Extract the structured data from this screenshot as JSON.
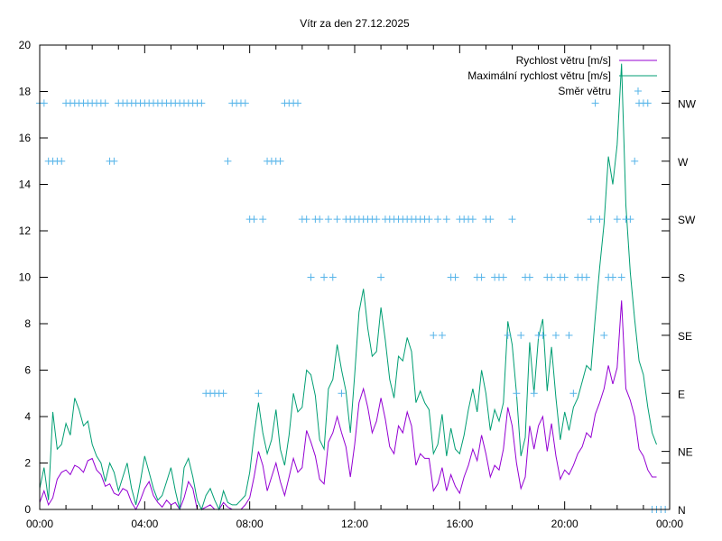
{
  "chart_data": {
    "type": "line",
    "title": "Vítr za den 27.12.2025",
    "xlabel": "",
    "ylabel": "",
    "xlim": [
      0,
      24
    ],
    "ylim": [
      0,
      20
    ],
    "x_tick_labels": [
      "00:00",
      "04:00",
      "08:00",
      "12:00",
      "16:00",
      "20:00",
      "00:00"
    ],
    "x_tick_hours": [
      0,
      4,
      8,
      12,
      16,
      20,
      24
    ],
    "y_tick_labels": [
      "0",
      "2",
      "4",
      "6",
      "8",
      "10",
      "12",
      "14",
      "16",
      "18",
      "20"
    ],
    "y_tick_values": [
      0,
      2,
      4,
      6,
      8,
      10,
      12,
      14,
      16,
      18,
      20
    ],
    "y2_tick_labels": [
      "N",
      "NE",
      "E",
      "SE",
      "S",
      "SW",
      "W",
      "NW"
    ],
    "y2_tick_values": [
      0,
      2.5,
      5,
      7.5,
      10,
      12.5,
      15,
      17.5
    ],
    "grid": false,
    "legend_position": "top-right",
    "colors": {
      "speed": "#9400d3",
      "max_speed": "#009e73",
      "direction": "#56b4e9",
      "axis": "#000000"
    },
    "series": [
      {
        "name": "Rychlost větru [m/s]",
        "step_minutes": 10,
        "values": [
          0.3,
          0.8,
          0.2,
          0.5,
          1.3,
          1.6,
          1.7,
          1.5,
          1.9,
          1.8,
          1.6,
          2.1,
          2.2,
          1.7,
          1.5,
          1.0,
          1.1,
          0.7,
          0.6,
          0.9,
          0.8,
          0.3,
          0.0,
          0.4,
          0.9,
          1.2,
          0.6,
          0.3,
          0.1,
          0.4,
          0.2,
          0.3,
          0.0,
          0.5,
          1.2,
          0.9,
          0.0,
          0.0,
          0.1,
          0.2,
          0.0,
          0.0,
          0.3,
          0.1,
          0.0,
          0.0,
          0.0,
          0.2,
          0.5,
          1.4,
          2.5,
          1.9,
          0.8,
          1.4,
          2.0,
          1.2,
          0.6,
          1.4,
          2.2,
          1.6,
          1.8,
          3.4,
          2.9,
          2.3,
          1.3,
          1.1,
          2.9,
          3.3,
          4.0,
          3.3,
          2.7,
          1.4,
          2.8,
          4.6,
          5.2,
          4.4,
          3.3,
          3.8,
          4.8,
          3.9,
          2.7,
          2.4,
          3.6,
          3.3,
          4.2,
          3.6,
          1.9,
          2.4,
          2.2,
          2.2,
          0.8,
          1.1,
          1.8,
          0.8,
          1.5,
          1.0,
          0.7,
          1.4,
          1.9,
          2.6,
          2.1,
          3.2,
          2.4,
          1.4,
          1.9,
          1.7,
          2.6,
          4.4,
          3.6,
          2.0,
          0.9,
          1.4,
          3.6,
          2.6,
          3.6,
          4.0,
          2.5,
          3.7,
          2.3,
          1.3,
          1.7,
          1.5,
          1.9,
          2.4,
          2.7,
          3.3,
          3.1,
          4.1,
          4.6,
          5.2,
          6.2,
          5.4,
          6.1,
          9.0,
          5.2,
          4.7,
          4.0,
          2.6,
          2.3,
          1.7,
          1.4,
          1.4
        ]
      },
      {
        "name": "Maximální rychlost větru [m/s]",
        "step_minutes": 10,
        "values": [
          0.9,
          1.8,
          0.4,
          4.2,
          2.6,
          2.8,
          3.7,
          3.2,
          4.8,
          4.3,
          3.6,
          3.8,
          2.8,
          2.3,
          2.0,
          1.2,
          2.0,
          1.6,
          0.8,
          1.4,
          2.0,
          0.9,
          0.2,
          1.2,
          2.3,
          1.6,
          0.9,
          0.4,
          0.6,
          1.2,
          1.8,
          0.8,
          0.0,
          1.8,
          2.2,
          1.4,
          0.4,
          0.0,
          0.6,
          0.9,
          0.4,
          0.0,
          0.8,
          0.3,
          0.2,
          0.2,
          0.4,
          0.6,
          1.6,
          3.2,
          4.6,
          3.3,
          2.4,
          3.0,
          4.3,
          2.6,
          1.9,
          3.2,
          5.0,
          4.2,
          4.4,
          6.0,
          5.8,
          4.9,
          3.0,
          2.6,
          5.2,
          5.6,
          7.1,
          6.0,
          5.1,
          3.3,
          5.8,
          8.5,
          9.5,
          7.8,
          6.6,
          6.8,
          8.7,
          7.3,
          5.6,
          4.8,
          6.6,
          6.4,
          7.4,
          6.8,
          4.6,
          5.1,
          4.6,
          4.3,
          2.4,
          2.8,
          4.1,
          2.3,
          3.5,
          2.6,
          2.4,
          3.2,
          4.3,
          5.2,
          4.2,
          6.0,
          5.0,
          3.4,
          4.3,
          3.8,
          4.6,
          8.1,
          7.1,
          5.0,
          2.3,
          3.1,
          7.2,
          5.0,
          7.4,
          8.2,
          5.1,
          7.0,
          4.8,
          3.0,
          4.2,
          3.4,
          4.4,
          4.8,
          5.5,
          6.2,
          6.0,
          8.3,
          10.4,
          12.3,
          15.2,
          14.0,
          15.7,
          19.2,
          13.1,
          10.2,
          8.2,
          6.4,
          5.8,
          4.4,
          3.3,
          2.8
        ]
      },
      {
        "name": "Směr větru",
        "step_minutes": 10,
        "values": [
          17.5,
          17.5,
          15,
          15,
          15,
          15,
          17.5,
          17.5,
          17.5,
          17.5,
          17.5,
          17.5,
          17.5,
          17.5,
          17.5,
          17.5,
          15,
          15,
          17.5,
          17.5,
          17.5,
          17.5,
          17.5,
          17.5,
          17.5,
          17.5,
          17.5,
          17.5,
          17.5,
          17.5,
          17.5,
          17.5,
          17.5,
          17.5,
          17.5,
          17.5,
          17.5,
          17.5,
          5,
          5,
          5,
          5,
          5,
          15,
          17.5,
          17.5,
          17.5,
          17.5,
          12.5,
          12.5,
          5,
          12.5,
          15,
          15,
          15,
          15,
          17.5,
          17.5,
          17.5,
          17.5,
          12.5,
          12.5,
          10,
          12.5,
          12.5,
          10,
          12.5,
          10,
          12.5,
          5,
          12.5,
          12.5,
          12.5,
          12.5,
          12.5,
          12.5,
          12.5,
          12.5,
          10,
          12.5,
          12.5,
          12.5,
          12.5,
          12.5,
          12.5,
          12.5,
          12.5,
          12.5,
          12.5,
          12.5,
          7.5,
          12.5,
          7.5,
          12.5,
          10,
          10,
          12.5,
          12.5,
          12.5,
          12.5,
          10,
          10,
          12.5,
          12.5,
          10,
          10,
          10,
          7.5,
          12.5,
          5,
          7.5,
          10,
          10,
          5,
          7.5,
          7.5,
          10,
          10,
          7.5,
          10,
          10,
          7.5,
          5,
          10,
          10,
          10,
          12.5,
          17.5,
          12.5,
          7.5,
          10,
          10,
          12.5,
          10,
          12.5,
          12.5,
          15,
          17.5,
          17.5,
          17.5,
          0,
          0,
          0,
          0
        ]
      }
    ]
  }
}
